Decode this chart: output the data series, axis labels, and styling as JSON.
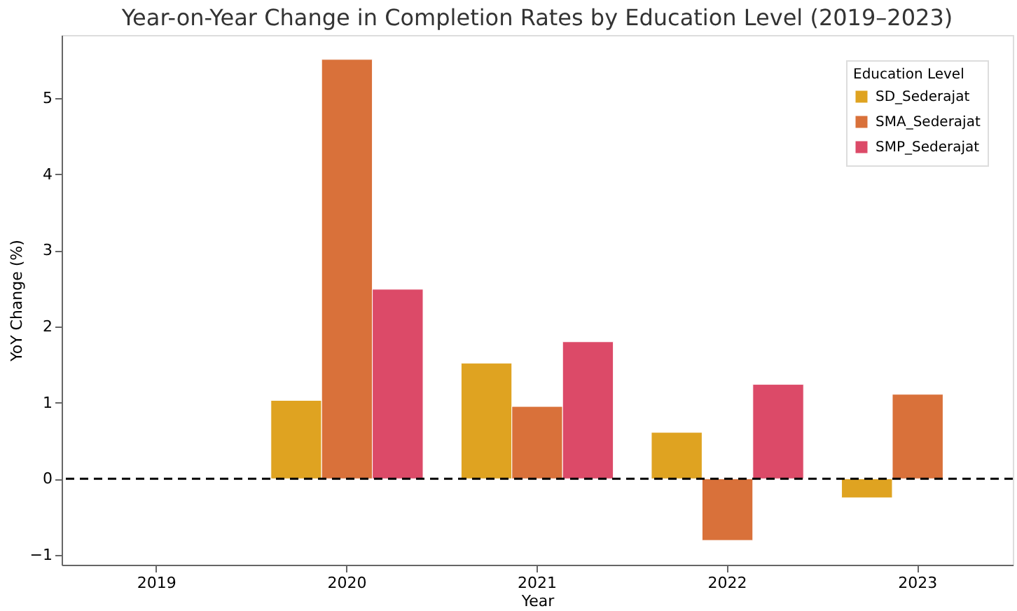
{
  "chart_data": {
    "type": "bar",
    "title": "Year-on-Year Change in Completion Rates by Education Level (2019–2023)",
    "xlabel": "Year",
    "ylabel": "YoY Change (%)",
    "legend_title": "Education Level",
    "categories": [
      "2019",
      "2020",
      "2021",
      "2022",
      "2023"
    ],
    "series": [
      {
        "name": "SD_Sederajat",
        "color": "#dfa321",
        "values": [
          null,
          1.03,
          1.52,
          0.61,
          -0.25
        ]
      },
      {
        "name": "SMA_Sederajat",
        "color": "#d9713a",
        "values": [
          null,
          5.51,
          0.95,
          -0.81,
          1.11
        ]
      },
      {
        "name": "SMP_Sederajat",
        "color": "#dc4a68",
        "values": [
          null,
          2.49,
          1.8,
          1.24,
          null
        ]
      }
    ],
    "ylim": [
      -1.13,
      5.83
    ],
    "yticks": [
      -1,
      0,
      1,
      2,
      3,
      4,
      5
    ],
    "ref_lines": [
      {
        "axis": "y",
        "value": 0,
        "color": "#000000",
        "line_style": "dashed"
      }
    ],
    "grid": false,
    "legend": "top right"
  }
}
